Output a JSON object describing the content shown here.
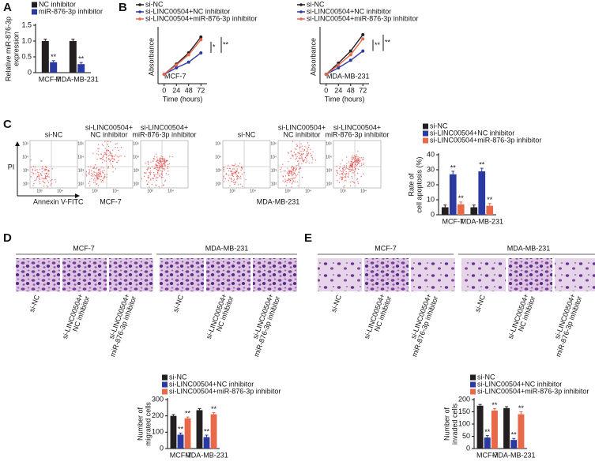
{
  "panel_letters": [
    "A",
    "B",
    "C",
    "D",
    "E"
  ],
  "chart_data": [
    {
      "type": "bar",
      "y_label": [
        "Relative miR-876-3p",
        "expression"
      ],
      "categories": [
        "MCF-7",
        "MDA-MB-231"
      ],
      "series": [
        {
          "name": "NC inhibitor",
          "color": "#231f20",
          "values": [
            1.0,
            1.0
          ],
          "errors": [
            0.06,
            0.06
          ]
        },
        {
          "name": "miR-876-3p inhibitor",
          "color": "#2b3aa0",
          "values": [
            0.33,
            0.27
          ],
          "errors": [
            0.05,
            0.05
          ],
          "significance": [
            "**",
            "**"
          ]
        }
      ],
      "ylim": [
        0,
        1.5
      ],
      "yticks": [
        0,
        0.5,
        {
          "value": 1,
          "label": "1.0"
        },
        1.5
      ]
    },
    {
      "type": "line",
      "x_label": "Time (hours)",
      "y_label": "Absorbance",
      "label": "MCF-7",
      "x": [
        0,
        24,
        48,
        72
      ],
      "series": [
        {
          "name": "si-NC",
          "color": "#231f20",
          "values": [
            0.2,
            0.42,
            0.66,
            1.0
          ]
        },
        {
          "name": "si-LINC00504+NC inhibitor",
          "color": "#2b3aa0",
          "values": [
            0.2,
            0.34,
            0.46,
            0.66
          ]
        },
        {
          "name": "si-LINC00504+miR-876-3p inhibitor",
          "color": "#e8684a",
          "values": [
            0.2,
            0.4,
            0.62,
            0.94
          ]
        }
      ],
      "xlim": [
        -12,
        84
      ],
      "xticks": [
        0,
        24,
        48,
        72
      ],
      "ylim": [
        0,
        1.15
      ],
      "annotations": [
        "*",
        "**"
      ]
    },
    {
      "type": "line",
      "x_label": "Time (hours)",
      "y_label": "Absorbance",
      "label": "MDA-MB-231",
      "x": [
        0,
        24,
        48,
        72
      ],
      "series": [
        {
          "name": "si-NC",
          "color": "#231f20",
          "values": [
            0.2,
            0.44,
            0.7,
            1.05
          ]
        },
        {
          "name": "si-LINC00504+NC inhibitor",
          "color": "#2b3aa0",
          "values": [
            0.2,
            0.34,
            0.5,
            0.7
          ]
        },
        {
          "name": "si-LINC00504+miR-876-3p inhibitor",
          "color": "#e8684a",
          "values": [
            0.2,
            0.4,
            0.62,
            0.96
          ]
        }
      ],
      "xlim": [
        -12,
        84
      ],
      "xticks": [
        0,
        24,
        48,
        72
      ],
      "ylim": [
        0,
        1.15
      ],
      "annotations": [
        "**",
        "**"
      ]
    },
    {
      "type": "bar",
      "y_label": [
        "Rate of",
        "cell apoptosis (%)"
      ],
      "categories": [
        "MCF-7",
        "MDA-MB-231"
      ],
      "series": [
        {
          "name": "si-NC",
          "color": "#231f20",
          "values": [
            5,
            5
          ],
          "errors": [
            1.5,
            1.5
          ]
        },
        {
          "name": "si-LINC00504+NC inhibitor",
          "color": "#2b3aa0",
          "values": [
            27,
            29
          ],
          "errors": [
            2,
            2
          ],
          "significance": [
            "**",
            "**"
          ]
        },
        {
          "name": "si-LINC00504+miR-876-3p inhibitor",
          "color": "#e8684a",
          "values": [
            7,
            6
          ],
          "errors": [
            1.5,
            1.5
          ],
          "significance": [
            "**",
            "**"
          ]
        }
      ],
      "ylim": [
        0,
        40
      ],
      "yticks": [
        0,
        10,
        20,
        30,
        40
      ]
    },
    {
      "type": "bar",
      "y_label": [
        "Number of",
        "migrated cells"
      ],
      "categories": [
        "MCF-7",
        "MDA-MB-231"
      ],
      "series": [
        {
          "name": "si-NC",
          "color": "#231f20",
          "values": [
            200,
            235
          ],
          "errors": [
            8,
            10
          ]
        },
        {
          "name": "si-LINC00504+NC inhibitor",
          "color": "#2b3aa0",
          "values": [
            85,
            70
          ],
          "errors": [
            10,
            12
          ],
          "significance": [
            "**",
            "**"
          ]
        },
        {
          "name": "si-LINC00504+miR-876-3p inhibitor",
          "color": "#e8684a",
          "values": [
            185,
            210
          ],
          "errors": [
            8,
            10
          ],
          "significance": [
            "**",
            "**"
          ]
        }
      ],
      "ylim": [
        0,
        300
      ],
      "yticks": [
        0,
        100,
        200,
        300
      ]
    },
    {
      "type": "bar",
      "y_label": [
        "Number of",
        "invaded cells"
      ],
      "categories": [
        "MCF-7",
        "MDA-MB-231"
      ],
      "series": [
        {
          "name": "si-NC",
          "color": "#231f20",
          "values": [
            175,
            165
          ],
          "errors": [
            5,
            6
          ]
        },
        {
          "name": "si-LINC00504+NC inhibitor",
          "color": "#2b3aa0",
          "values": [
            45,
            35
          ],
          "errors": [
            8,
            6
          ],
          "significance": [
            "**",
            "**"
          ]
        },
        {
          "name": "si-LINC00504+miR-876-3p inhibitor",
          "color": "#e8684a",
          "values": [
            155,
            140
          ],
          "errors": [
            8,
            10
          ],
          "significance": [
            "**",
            "**"
          ]
        }
      ],
      "ylim": [
        0,
        200
      ],
      "yticks": [
        0,
        50,
        100,
        150,
        200
      ]
    }
  ],
  "flow": {
    "columns": [
      [
        "si-NC"
      ],
      [
        "si-LINC00504+",
        "NC inhibitor"
      ],
      [
        "si-LINC00504+",
        "miR-876-3p inhibitor"
      ]
    ],
    "groups": [
      "MCF-7",
      "MDA-MB-231"
    ],
    "y_axis": "PI",
    "x_axis": "Annexin V-FITC",
    "y_ticks": [
      "10⁵",
      "10⁴",
      "10³",
      "10²"
    ],
    "x_ticks": [
      "10³",
      "10⁴"
    ]
  },
  "transwell": {
    "groups": [
      "MCF-7",
      "MDA-MB-231"
    ],
    "columns": [
      [
        "si-NC"
      ],
      [
        "si-LINC00504+",
        "NC inhibitor"
      ],
      [
        "si-LINC00504+",
        "miR-876-3p inhibitor"
      ]
    ]
  }
}
